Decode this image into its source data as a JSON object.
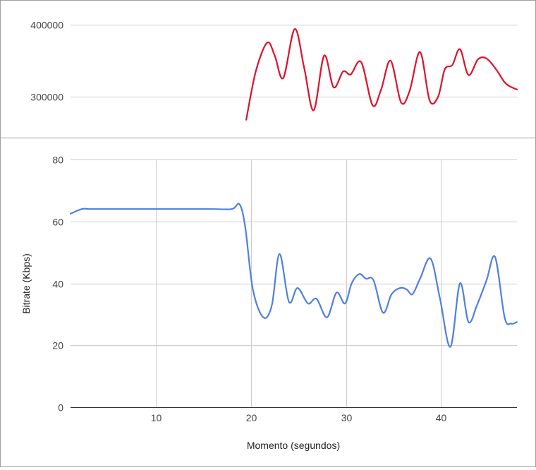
{
  "colors": {
    "top_series": "#e0102a",
    "bottom_series": "#4f7fe0"
  },
  "chart_data": [
    {
      "type": "line",
      "title": "",
      "xlabel": "",
      "ylabel": "",
      "xlim": [
        1,
        48
      ],
      "ylim": [
        265000,
        405000
      ],
      "yticks": [
        300000,
        400000
      ],
      "ytick_labels": [
        "300000",
        "400000"
      ],
      "grid": true,
      "series": [
        {
          "color": "#e0102a",
          "x": [
            19.5,
            20.5,
            21.7,
            22.5,
            23.4,
            24.6,
            25.6,
            26.6,
            27.7,
            28.7,
            29.7,
            30.5,
            31.6,
            32.8,
            33.7,
            34.7,
            35.8,
            36.7,
            37.8,
            38.8,
            39.7,
            40.4,
            41.2,
            42.0,
            42.9,
            43.9,
            44.8,
            45.8,
            46.7,
            47.3,
            48.0
          ],
          "y": [
            268000,
            335000,
            375000,
            357000,
            326000,
            394000,
            340000,
            281000,
            357000,
            313000,
            335000,
            331000,
            348000,
            288000,
            310000,
            350000,
            292000,
            308000,
            362000,
            295000,
            300000,
            338000,
            344000,
            366000,
            330000,
            352000,
            353000,
            338000,
            320000,
            314000,
            310000
          ]
        }
      ]
    },
    {
      "type": "line",
      "title": "",
      "xlabel": "Momento (segundos)",
      "ylabel": "Bitrate (Kbps)",
      "xlim": [
        1,
        48
      ],
      "ylim": [
        0,
        80
      ],
      "xticks": [
        10,
        20,
        30,
        40
      ],
      "xtick_labels": [
        "10",
        "20",
        "30",
        "40"
      ],
      "yticks": [
        0,
        20,
        40,
        60,
        80
      ],
      "ytick_labels": [
        "0",
        "20",
        "40",
        "60",
        "80"
      ],
      "grid": true,
      "series": [
        {
          "color": "#4f7fe0",
          "x": [
            1.0,
            2.2,
            3.0,
            5,
            8,
            10,
            12,
            14,
            16,
            18.0,
            18.8,
            19.4,
            20.2,
            21.3,
            22.2,
            23.0,
            24.0,
            24.9,
            26.0,
            26.9,
            28.0,
            29.0,
            29.9,
            30.6,
            31.4,
            32.1,
            32.9,
            33.9,
            34.8,
            35.7,
            36.4,
            37.0,
            37.8,
            38.9,
            39.9,
            41.0,
            42.0,
            42.9,
            43.8,
            44.8,
            45.7,
            46.7,
            47.4,
            48.0
          ],
          "y": [
            62.5,
            64,
            64,
            64,
            64,
            64,
            64,
            64,
            64,
            64,
            65.5,
            58,
            38,
            29,
            33,
            49.5,
            34,
            38.5,
            33.5,
            35,
            29,
            37,
            33.5,
            40,
            43,
            41.5,
            41,
            30.5,
            36.5,
            38.5,
            38,
            36.5,
            41.5,
            48,
            35,
            19.5,
            40,
            27.5,
            33,
            41,
            48.5,
            29,
            27,
            27.5
          ]
        }
      ]
    }
  ]
}
